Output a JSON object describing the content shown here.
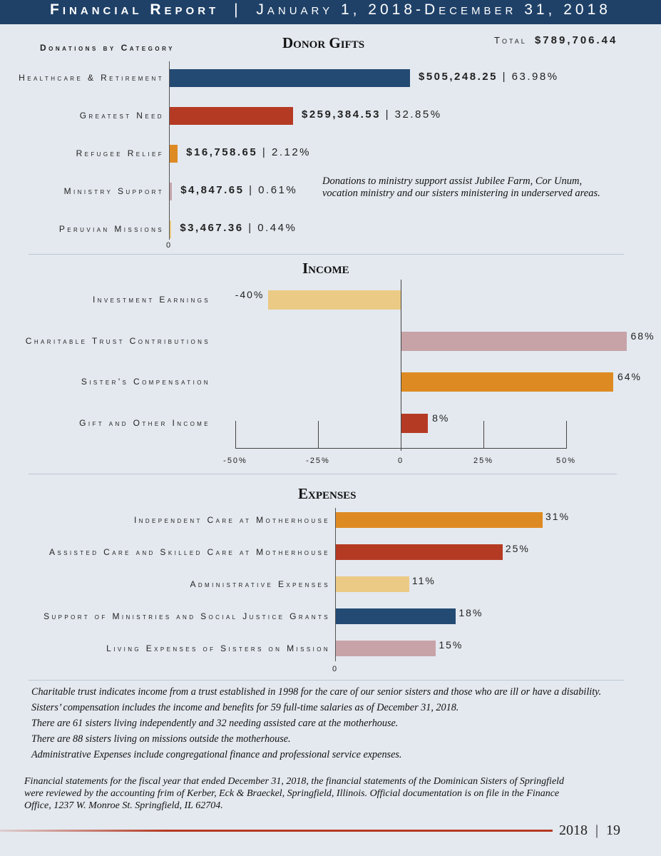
{
  "header": {
    "left": "Financial Report",
    "separator": "|",
    "right": "January 1, 2018-December 31, 2018"
  },
  "donor": {
    "subtitle": "Donations by Category",
    "title": "Donor Gifts",
    "total_label": "Total",
    "total_value": "$789,706.44",
    "zero": "0",
    "note_line1": "Donations to ministry support assist Jubilee Farm, Cor Unum,",
    "note_line2": "vocation ministry and our sisters ministering in underserved areas."
  },
  "income": {
    "title": "Income"
  },
  "expenses": {
    "title": "Expenses",
    "zero": "0"
  },
  "colors": {
    "navy": "#234a73",
    "red": "#b53a24",
    "orange": "#de8a22",
    "mauve": "#c7a3a8",
    "sand": "#ebca85",
    "banner": "#1f4168",
    "footer_rule": "#b53a24"
  },
  "chart_data": [
    {
      "type": "bar",
      "title": "Donor Gifts",
      "orientation": "horizontal",
      "categories": [
        "Healthcare & Retirement",
        "Greatest Need",
        "Refugee Relief",
        "Ministry Support",
        "Peruvian Missions"
      ],
      "values": [
        505248.25,
        259384.53,
        16758.65,
        4847.65,
        3467.36
      ],
      "value_labels": [
        "$505,248.25",
        "$259,384.53",
        "$16,758.65",
        "$4,847.65",
        "$3,467.36"
      ],
      "percent_labels": [
        "63.98%",
        "32.85%",
        "2.12%",
        "0.61%",
        "0.44%"
      ],
      "bar_colors": [
        "#234a73",
        "#b53a24",
        "#de8a22",
        "#c7a3a8",
        "#ebca85"
      ],
      "xlim": [
        0,
        505248.25
      ]
    },
    {
      "type": "bar",
      "title": "Income",
      "orientation": "horizontal",
      "categories": [
        "Investment Earnings",
        "Charitable Trust Contributions",
        "Sister's Compensation",
        "Gift and Other Income"
      ],
      "values": [
        -40,
        68,
        64,
        8
      ],
      "value_labels": [
        "-40%",
        "68%",
        "64%",
        "8%"
      ],
      "bar_colors": [
        "#ebca85",
        "#c7a3a8",
        "#de8a22",
        "#b53a24"
      ],
      "xticks": [
        "-50%",
        "-25%",
        "0",
        "25%",
        "50%"
      ],
      "tick_values": [
        -50,
        -25,
        0,
        25,
        50
      ],
      "xlim": [
        -50,
        50
      ]
    },
    {
      "type": "bar",
      "title": "Expenses",
      "orientation": "horizontal",
      "categories": [
        "Independent Care at Motherhouse",
        "Assisted Care and Skilled Care at Motherhouse",
        "Administrative Expenses",
        "Support of Ministries and Social Justice Grants",
        "Living Expenses of Sisters on Mission"
      ],
      "values": [
        31,
        25,
        11,
        18,
        15
      ],
      "value_labels": [
        "31%",
        "25%",
        "11%",
        "18%",
        "15%"
      ],
      "bar_colors": [
        "#de8a22",
        "#b53a24",
        "#ebca85",
        "#234a73",
        "#c7a3a8"
      ],
      "xlim": [
        0,
        31
      ]
    }
  ],
  "notes": [
    "Charitable trust indicates income from a trust established in 1998 for the care of our senior sisters and those who are ill or have a disability.",
    "Sisters’ compensation includes the income and benefits for 59 full-time salaries as of December 31, 2018.",
    "There are 61 sisters living independently and 32 needing assisted care at the motherhouse.",
    "There are 88 sisters living on missions outside the motherhouse.",
    "Administrative Expenses include congregational finance and professional service expenses."
  ],
  "statement": [
    "Financial statements for the fiscal year that ended December 31, 2018, the financial statements of the Dominican Sisters of Springfield",
    "were reviewed by the accounting frim of Kerber, Eck & Braeckel, Springfield, Illinois.  Official documentation is on file in the Finance",
    "Office, 1237 W. Monroe St. Springfield, IL 62704."
  ],
  "footer": {
    "year": "2018",
    "separator": "|",
    "page": "19"
  }
}
